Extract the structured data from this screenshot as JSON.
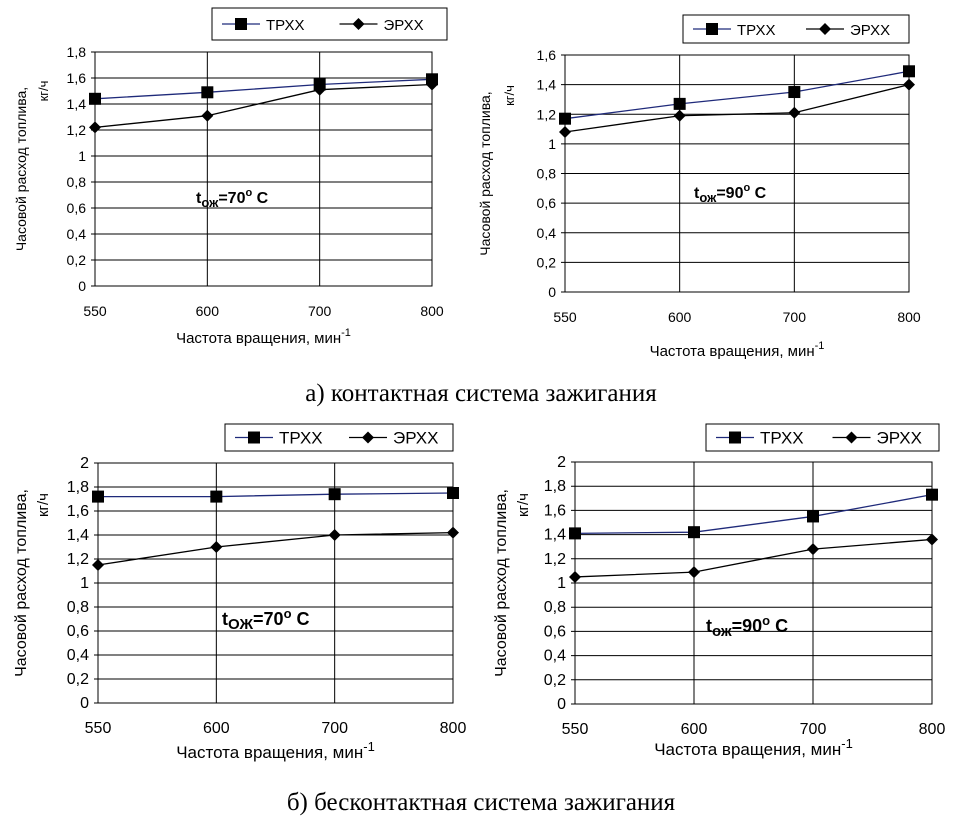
{
  "captions": {
    "a": "а) контактная система зажигания",
    "b": "б) бесконтактная система зажигания"
  },
  "colors": {
    "trxx": "#1f2a7a",
    "erxx": "#000000",
    "grid": "#000000"
  },
  "chart_data": [
    {
      "type": "line",
      "categories": [
        "550",
        "600",
        "700",
        "800"
      ],
      "series": [
        {
          "name": "ТРХХ",
          "values": [
            1.44,
            1.49,
            1.55,
            1.59
          ],
          "marker": "square"
        },
        {
          "name": "ЭРХХ",
          "values": [
            1.22,
            1.31,
            1.51,
            1.55
          ],
          "marker": "diamond"
        }
      ],
      "ylim": [
        0,
        1.8
      ],
      "yticks": [
        "0",
        "0,2",
        "0,4",
        "0,6",
        "0,8",
        "1",
        "1,2",
        "1,4",
        "1,6",
        "1,8"
      ],
      "ylabel_line1": "Часовой расход топлива,",
      "ylabel_line2": "кг/ч",
      "xlabel": "Частота вращения, мин",
      "xlabel_sup": "-1",
      "annotation": {
        "t": "t",
        "sub": "ож",
        "main": "=70",
        "sup": "o",
        "end": " C"
      },
      "grid": true,
      "legend": "top"
    },
    {
      "type": "line",
      "categories": [
        "550",
        "600",
        "700",
        "800"
      ],
      "series": [
        {
          "name": "ТРХХ",
          "values": [
            1.17,
            1.27,
            1.35,
            1.49
          ],
          "marker": "square"
        },
        {
          "name": "ЭРХХ",
          "values": [
            1.08,
            1.19,
            1.21,
            1.4
          ],
          "marker": "diamond"
        }
      ],
      "ylim": [
        0,
        1.6
      ],
      "yticks": [
        "0",
        "0,2",
        "0,4",
        "0,6",
        "0,8",
        "1",
        "1,2",
        "1,4",
        "1,6"
      ],
      "ylabel_line1": "Часовой расход топлива,",
      "ylabel_line2": "кг/ч",
      "xlabel": "Частота вращения, мин",
      "xlabel_sup": "-1",
      "annotation": {
        "t": "t",
        "sub": "ож",
        "main": "=90",
        "sup": "o",
        "end": " C"
      },
      "grid": true,
      "legend": "top"
    },
    {
      "type": "line",
      "categories": [
        "550",
        "600",
        "700",
        "800"
      ],
      "series": [
        {
          "name": "ТРХХ",
          "values": [
            1.72,
            1.72,
            1.74,
            1.75
          ],
          "marker": "square"
        },
        {
          "name": "ЭРХХ",
          "values": [
            1.15,
            1.3,
            1.4,
            1.42
          ],
          "marker": "diamond"
        }
      ],
      "ylim": [
        0,
        2
      ],
      "yticks": [
        "0",
        "0,2",
        "0,4",
        "0,6",
        "0,8",
        "1",
        "1,2",
        "1,4",
        "1,6",
        "1,8",
        "2"
      ],
      "ylabel_line1": "Часовой расход топлива,",
      "ylabel_line2": "кг/ч",
      "xlabel": "Частота вращения, мин",
      "xlabel_sup": "-1",
      "annotation": {
        "t": "t",
        "sub": "ОЖ",
        "main": "=70",
        "sup": "o",
        "end": " C"
      },
      "grid": true,
      "legend": "top"
    },
    {
      "type": "line",
      "categories": [
        "550",
        "600",
        "700",
        "800"
      ],
      "series": [
        {
          "name": "ТРХХ",
          "values": [
            1.41,
            1.42,
            1.55,
            1.73
          ],
          "marker": "square"
        },
        {
          "name": "ЭРХХ",
          "values": [
            1.05,
            1.09,
            1.28,
            1.36
          ],
          "marker": "diamond"
        }
      ],
      "ylim": [
        0,
        2
      ],
      "yticks": [
        "0",
        "0,2",
        "0,4",
        "0,6",
        "0,8",
        "1",
        "1,2",
        "1,4",
        "1,6",
        "1,8",
        "2"
      ],
      "ylabel_line1": "Часовой расход топлива,",
      "ylabel_line2": "кг/ч",
      "xlabel": "Частота вращения, мин",
      "xlabel_sup": "-1",
      "annotation": {
        "t": "t",
        "sub": "ож",
        "main": "=90",
        "sup": "o",
        "end": " C"
      },
      "grid": true,
      "legend": "top"
    }
  ]
}
